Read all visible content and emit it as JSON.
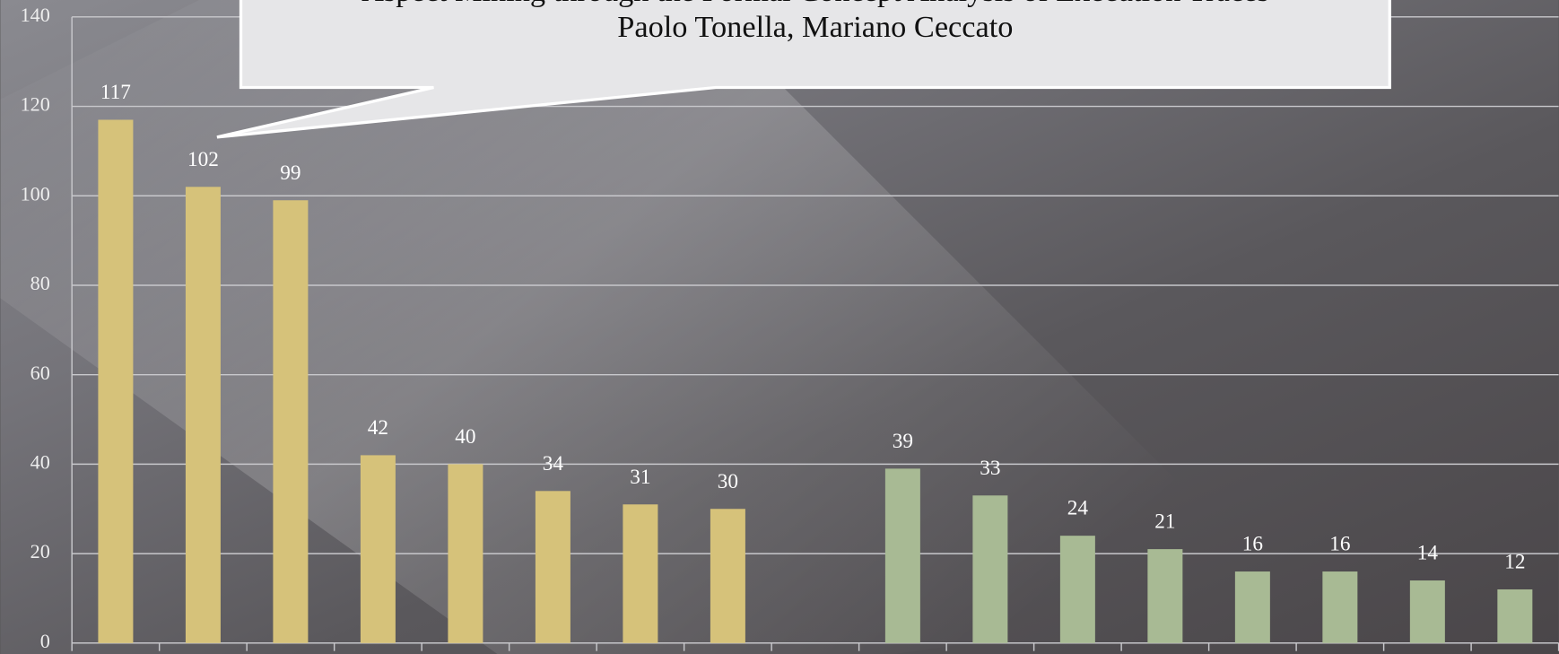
{
  "chart_data": {
    "type": "bar",
    "title": "Aspect Mining through the Formal Concept Analysis of Execution Traces",
    "subtitle": "Paolo Tonella, Mariano Ceccato",
    "categories": [
      null,
      null,
      null,
      null,
      null,
      null,
      null,
      null,
      null,
      null,
      null,
      null,
      null,
      null,
      null,
      null,
      null
    ],
    "series": [
      {
        "color": "#d6c27a",
        "values": [
          117,
          102,
          99,
          42,
          40,
          34,
          31,
          30,
          null,
          null,
          null,
          null,
          null,
          null,
          null,
          null,
          null
        ]
      },
      {
        "color": "#a8ba94",
        "values": [
          null,
          null,
          null,
          null,
          null,
          null,
          null,
          null,
          null,
          39,
          33,
          24,
          21,
          16,
          16,
          14,
          12
        ]
      }
    ],
    "ylim": [
      0,
      140
    ],
    "yticks": [
      0,
      20,
      40,
      60,
      80,
      100,
      120,
      140
    ],
    "grid": true
  }
}
